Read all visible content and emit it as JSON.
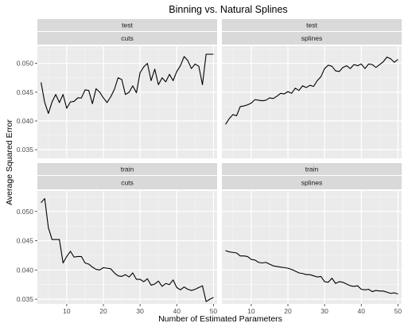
{
  "chart_data": {
    "type": "line",
    "title": "Binning vs. Natural Splines",
    "xlabel": "Number of Estimated Parameters",
    "ylabel": "Average Squared Error",
    "xlim": [
      2,
      51
    ],
    "x_ticks": [
      10,
      20,
      30,
      40,
      50
    ],
    "grid": true,
    "facet_rows": [
      "test",
      "train"
    ],
    "facet_cols": [
      "cuts",
      "splines"
    ],
    "rows": [
      {
        "row": "test",
        "ylim": [
          0.0335,
          0.053
        ],
        "y_ticks": [
          0.035,
          0.04,
          0.045,
          0.05
        ]
      },
      {
        "row": "train",
        "ylim": [
          0.0342,
          0.0535
        ],
        "y_ticks": [
          0.035,
          0.04,
          0.045,
          0.05
        ]
      }
    ],
    "panels": [
      {
        "row": "test",
        "col": "cuts",
        "x": [
          3,
          4,
          5,
          6,
          7,
          8,
          9,
          10,
          11,
          12,
          13,
          14,
          15,
          16,
          17,
          18,
          19,
          20,
          21,
          22,
          23,
          24,
          25,
          26,
          27,
          28,
          29,
          30,
          31,
          32,
          33,
          34,
          35,
          36,
          37,
          38,
          39,
          40,
          41,
          42,
          43,
          44,
          45,
          46,
          47,
          48,
          49,
          50
        ],
        "y": [
          0.0467,
          0.0432,
          0.0413,
          0.0433,
          0.0446,
          0.0432,
          0.0446,
          0.0422,
          0.0433,
          0.0434,
          0.044,
          0.044,
          0.0454,
          0.0453,
          0.043,
          0.0456,
          0.045,
          0.044,
          0.0432,
          0.0442,
          0.0455,
          0.0475,
          0.0472,
          0.0446,
          0.045,
          0.0461,
          0.0449,
          0.0484,
          0.0494,
          0.05,
          0.047,
          0.049,
          0.0463,
          0.0475,
          0.0468,
          0.0481,
          0.047,
          0.0486,
          0.0496,
          0.0512,
          0.0505,
          0.0491,
          0.0499,
          0.0495,
          0.0463,
          0.0516,
          0.0516,
          0.0516
        ]
      },
      {
        "row": "test",
        "col": "splines",
        "x": [
          3,
          4,
          5,
          6,
          7,
          8,
          9,
          10,
          11,
          12,
          13,
          14,
          15,
          16,
          17,
          18,
          19,
          20,
          21,
          22,
          23,
          24,
          25,
          26,
          27,
          28,
          29,
          30,
          31,
          32,
          33,
          34,
          35,
          36,
          37,
          38,
          39,
          40,
          41,
          42,
          43,
          44,
          45,
          46,
          47,
          48,
          49,
          50
        ],
        "y": [
          0.0394,
          0.0404,
          0.0411,
          0.0409,
          0.0425,
          0.0426,
          0.0428,
          0.0431,
          0.0437,
          0.0436,
          0.0435,
          0.0436,
          0.044,
          0.0439,
          0.0443,
          0.0448,
          0.0447,
          0.0451,
          0.0448,
          0.0457,
          0.0453,
          0.0461,
          0.0458,
          0.0462,
          0.046,
          0.047,
          0.0477,
          0.0491,
          0.0497,
          0.0495,
          0.0487,
          0.0486,
          0.0493,
          0.0496,
          0.0491,
          0.0498,
          0.0496,
          0.0499,
          0.0491,
          0.0499,
          0.0498,
          0.0493,
          0.0498,
          0.0503,
          0.0511,
          0.0508,
          0.0502,
          0.0507
        ]
      },
      {
        "row": "train",
        "col": "cuts",
        "x": [
          3,
          4,
          5,
          6,
          7,
          8,
          9,
          10,
          11,
          12,
          13,
          14,
          15,
          16,
          17,
          18,
          19,
          20,
          21,
          22,
          23,
          24,
          25,
          26,
          27,
          28,
          29,
          30,
          31,
          32,
          33,
          34,
          35,
          36,
          37,
          38,
          39,
          40,
          41,
          42,
          43,
          44,
          45,
          46,
          47,
          48,
          49,
          50
        ],
        "y": [
          0.0515,
          0.0522,
          0.0472,
          0.0452,
          0.0452,
          0.0452,
          0.0412,
          0.0423,
          0.0432,
          0.0422,
          0.0423,
          0.0423,
          0.0412,
          0.041,
          0.0405,
          0.0401,
          0.04,
          0.0404,
          0.0403,
          0.0402,
          0.0395,
          0.039,
          0.0389,
          0.0392,
          0.0388,
          0.0395,
          0.0384,
          0.0384,
          0.038,
          0.0385,
          0.0374,
          0.0376,
          0.0381,
          0.0372,
          0.0377,
          0.0375,
          0.0383,
          0.037,
          0.0366,
          0.0371,
          0.0367,
          0.0365,
          0.0367,
          0.037,
          0.0373,
          0.0346,
          0.035,
          0.0353
        ]
      },
      {
        "row": "train",
        "col": "splines",
        "x": [
          3,
          4,
          5,
          6,
          7,
          8,
          9,
          10,
          11,
          12,
          13,
          14,
          15,
          16,
          17,
          18,
          19,
          20,
          21,
          22,
          23,
          24,
          25,
          26,
          27,
          28,
          29,
          30,
          31,
          32,
          33,
          34,
          35,
          36,
          37,
          38,
          39,
          40,
          41,
          42,
          43,
          44,
          45,
          46,
          47,
          48,
          49,
          50
        ],
        "y": [
          0.0433,
          0.0431,
          0.043,
          0.0429,
          0.0424,
          0.0424,
          0.0423,
          0.0418,
          0.0417,
          0.0413,
          0.0412,
          0.0413,
          0.041,
          0.0407,
          0.0406,
          0.0405,
          0.0404,
          0.0403,
          0.0401,
          0.0398,
          0.0395,
          0.0394,
          0.0392,
          0.0392,
          0.039,
          0.0388,
          0.0389,
          0.038,
          0.0379,
          0.0386,
          0.0377,
          0.038,
          0.0379,
          0.0376,
          0.0373,
          0.0372,
          0.0373,
          0.0367,
          0.0366,
          0.0367,
          0.0363,
          0.0365,
          0.0364,
          0.0364,
          0.0362,
          0.036,
          0.0361,
          0.0359
        ]
      }
    ]
  }
}
